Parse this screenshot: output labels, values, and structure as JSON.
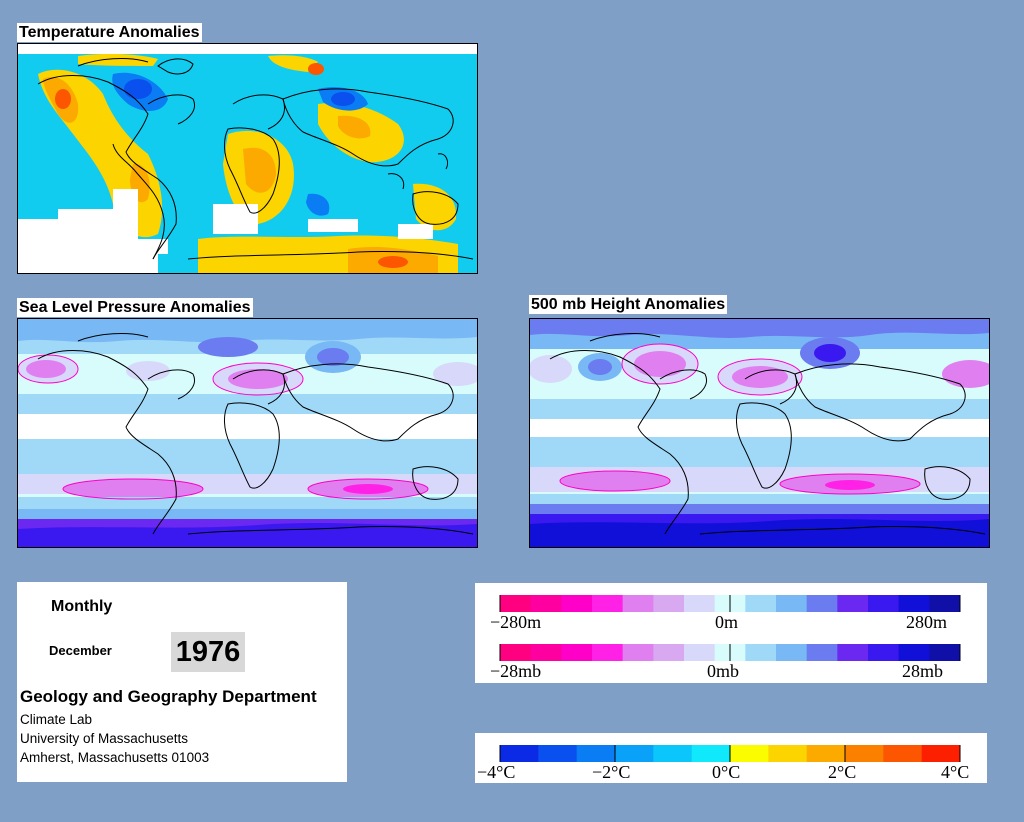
{
  "maps": {
    "temperature": {
      "title": "Temperature Anomalies"
    },
    "slp": {
      "title": "Sea Level Pressure Anomalies"
    },
    "height500": {
      "title": "500 mb Height Anomalies"
    }
  },
  "info": {
    "period_type": "Monthly",
    "month": "December",
    "year": "1976",
    "department": "Geology and Geography Department",
    "lines": [
      "Climate Lab",
      "University of Massachusetts",
      "Amherst, Massachusetts 01003"
    ]
  },
  "legend_pressure": {
    "colors": [
      "#ff0080",
      "#ff00a0",
      "#ff00c8",
      "#ff22e6",
      "#e080f0",
      "#d8a8f0",
      "#d8d8fa",
      "#d8fcfc",
      "#a0d8f8",
      "#78b8f4",
      "#6a7cf0",
      "#6a28f0",
      "#3a18f0",
      "#1010d8",
      "#1010a8"
    ],
    "height_labels": [
      "−280m",
      "0m",
      "280m"
    ],
    "slp_labels": [
      "−28mb",
      "0mb",
      "28mb"
    ]
  },
  "legend_temperature": {
    "labels": [
      "−4°C",
      "−2°C",
      "0°C",
      "2°C",
      "4°C"
    ],
    "colors": [
      "#0a2ae6",
      "#0a50ee",
      "#0a7cf4",
      "#0aa2f8",
      "#0ac6fa",
      "#10e8fc",
      "#fcfc00",
      "#fcd400",
      "#fcaa00",
      "#fc8000",
      "#fc5600",
      "#fc2000"
    ]
  }
}
